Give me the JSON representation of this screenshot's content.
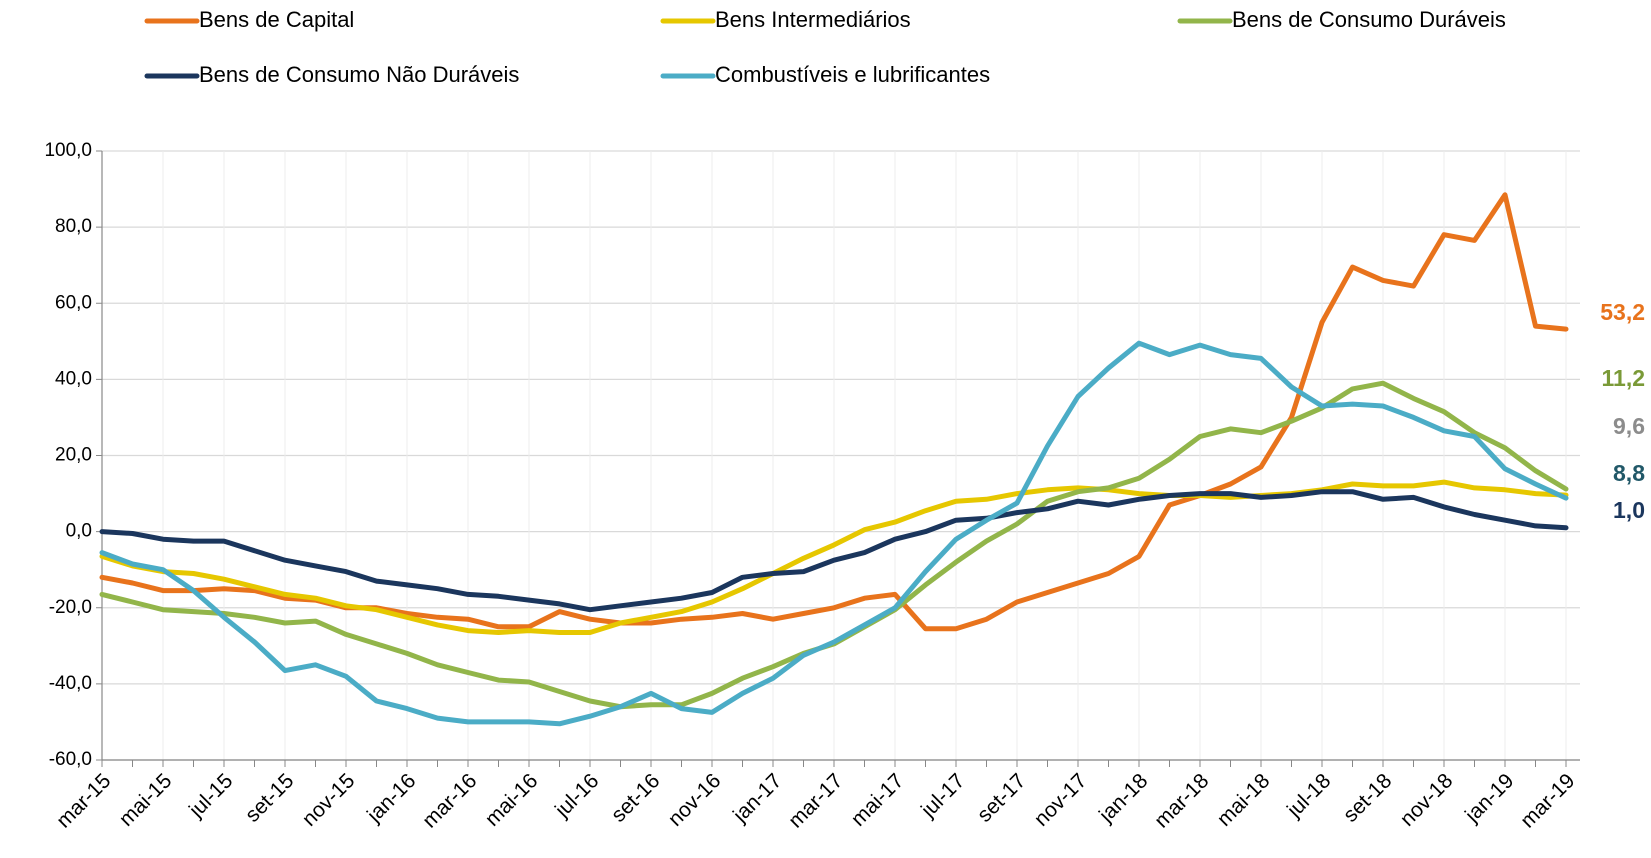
{
  "chart_data": {
    "type": "line",
    "categories": [
      "mar-15",
      null,
      "mai-15",
      null,
      "jul-15",
      null,
      "set-15",
      null,
      "nov-15",
      null,
      "jan-16",
      null,
      "mar-16",
      null,
      "mai-16",
      null,
      "jul-16",
      null,
      "set-16",
      null,
      "nov-16",
      null,
      "jan-17",
      null,
      "mar-17",
      null,
      "mai-17",
      null,
      "jul-17",
      null,
      "set-17",
      null,
      "nov-17",
      null,
      "jan-18",
      null,
      "mar-18",
      null,
      "mai-18",
      null,
      "jul-18",
      null,
      "set-18",
      null,
      "nov-18",
      null,
      "jan-19",
      null,
      "mar-19"
    ],
    "ylim": [
      -60,
      100
    ],
    "yticks": [
      {
        "value": -60,
        "label": "-60,0"
      },
      {
        "value": -40,
        "label": "-40,0"
      },
      {
        "value": -20,
        "label": "-20,0"
      },
      {
        "value": 0,
        "label": "0,0"
      },
      {
        "value": 20,
        "label": "20,0"
      },
      {
        "value": 40,
        "label": "40,0"
      },
      {
        "value": 60,
        "label": "60,0"
      },
      {
        "value": 80,
        "label": "80,0"
      },
      {
        "value": 100,
        "label": "100,0"
      }
    ],
    "grid": true,
    "series": [
      {
        "name": "Bens de Capital",
        "color": "#e8731c",
        "label_color": "#e8731c",
        "values": [
          -12,
          -13.5,
          -15.5,
          -15.5,
          -15,
          -15.5,
          -17.5,
          -18,
          -20,
          -20,
          -21.5,
          -22.5,
          -23,
          -25,
          -25,
          -21,
          -23,
          -24,
          -24,
          -23,
          -22.5,
          -21.5,
          -23,
          -21.5,
          -20,
          -17.5,
          -16.5,
          -25.5,
          -25.5,
          -23,
          -18.5,
          -16,
          -13.5,
          -11,
          -6.5,
          7,
          9.5,
          12.5,
          17,
          30,
          55,
          69.5,
          66,
          64.5,
          78,
          76.5,
          88.5,
          54,
          53.2
        ],
        "value_labels": [
          null,
          null,
          null,
          null,
          null,
          null,
          null,
          null,
          null,
          null,
          null,
          null,
          null,
          null,
          null,
          null,
          null,
          null,
          null,
          null,
          null,
          null,
          null,
          null,
          null,
          null,
          null,
          null,
          null,
          null,
          null,
          null,
          null,
          null,
          null,
          null,
          null,
          null,
          null,
          null,
          null,
          null,
          null,
          null,
          null,
          null,
          null,
          null,
          "53,2"
        ]
      },
      {
        "name": "Bens Intermediários",
        "color": "#e6c700",
        "label_color": "#8c8c8c",
        "values": [
          -6.5,
          -9,
          -10.5,
          -11,
          -12.5,
          -14.5,
          -16.5,
          -17.5,
          -19.5,
          -20.5,
          -22.5,
          -24.5,
          -26,
          -26.5,
          -26,
          -26.5,
          -26.5,
          -24,
          -22.5,
          -21,
          -18.5,
          -15,
          -11,
          -7,
          -3.5,
          0.5,
          2.5,
          5.5,
          8,
          8.5,
          10,
          11,
          11.5,
          11,
          10,
          9.5,
          9.5,
          9,
          9.5,
          10,
          11,
          12.5,
          12,
          12,
          13,
          11.5,
          11,
          10,
          9.6
        ],
        "value_labels": [
          null,
          null,
          null,
          null,
          null,
          null,
          null,
          null,
          null,
          null,
          null,
          null,
          null,
          null,
          null,
          null,
          null,
          null,
          null,
          null,
          null,
          null,
          null,
          null,
          null,
          null,
          null,
          null,
          null,
          null,
          null,
          null,
          null,
          null,
          null,
          null,
          null,
          null,
          null,
          null,
          null,
          null,
          null,
          null,
          null,
          null,
          null,
          null,
          "9,6"
        ]
      },
      {
        "name": "Bens de Consumo Duráveis",
        "color": "#92b54a",
        "label_color": "#7a9a37",
        "values": [
          -16.5,
          -18.5,
          -20.5,
          -21,
          -21.5,
          -22.5,
          -24,
          -23.5,
          -27,
          -29.5,
          -32,
          -35,
          -37,
          -39,
          -39.5,
          -42,
          -44.5,
          -46,
          -45.5,
          -45.5,
          -42.5,
          -38.5,
          -35.5,
          -32,
          -29.5,
          -25,
          -20.5,
          -14,
          -8,
          -2.5,
          2,
          8,
          10.5,
          11.5,
          14,
          19,
          25,
          27,
          26,
          29,
          32.5,
          37.5,
          39,
          35,
          31.5,
          26,
          22,
          16,
          11.2
        ],
        "value_labels": [
          null,
          null,
          null,
          null,
          null,
          null,
          null,
          null,
          null,
          null,
          null,
          null,
          null,
          null,
          null,
          null,
          null,
          null,
          null,
          null,
          null,
          null,
          null,
          null,
          null,
          null,
          null,
          null,
          null,
          null,
          null,
          null,
          null,
          null,
          null,
          null,
          null,
          null,
          null,
          null,
          null,
          null,
          null,
          null,
          null,
          null,
          null,
          null,
          "11,2"
        ]
      },
      {
        "name": "Bens de Consumo Não Duráveis",
        "color": "#1b365d",
        "label_color": "#1b365d",
        "values": [
          0,
          -0.5,
          -2,
          -2.5,
          -2.5,
          -5,
          -7.5,
          -9,
          -10.5,
          -13,
          -14,
          -15,
          -16.5,
          -17,
          -18,
          -19,
          -20.5,
          -19.5,
          -18.5,
          -17.5,
          -16,
          -12,
          -11,
          -10.5,
          -7.5,
          -5.5,
          -2,
          0,
          3,
          3.5,
          5,
          6,
          8,
          7,
          8.5,
          9.5,
          10,
          10,
          9,
          9.5,
          10.5,
          10.5,
          8.5,
          9,
          6.5,
          4.5,
          3,
          1.5,
          1.0
        ],
        "value_labels": [
          null,
          null,
          null,
          null,
          null,
          null,
          null,
          null,
          null,
          null,
          null,
          null,
          null,
          null,
          null,
          null,
          null,
          null,
          null,
          null,
          null,
          null,
          null,
          null,
          null,
          null,
          null,
          null,
          null,
          null,
          null,
          null,
          null,
          null,
          null,
          null,
          null,
          null,
          null,
          null,
          null,
          null,
          null,
          null,
          null,
          null,
          null,
          null,
          "1,0"
        ]
      },
      {
        "name": "Combustíveis e lubrificantes",
        "color": "#4bacc6",
        "label_color": "#215868",
        "values": [
          -5.5,
          -8.5,
          -10,
          -15.5,
          -22.5,
          -29,
          -36.5,
          -35,
          -38,
          -44.5,
          -46.5,
          -49,
          -50,
          -50,
          -50,
          -50.5,
          -48.5,
          -46,
          -42.5,
          -46.5,
          -47.5,
          -42.5,
          -38.5,
          -32.5,
          -29,
          -24.5,
          -20,
          -10.5,
          -2,
          3,
          7.5,
          22.5,
          35.5,
          43,
          49.5,
          46.5,
          49,
          46.5,
          45.5,
          38,
          33,
          33.5,
          33,
          30,
          26.5,
          25,
          16.5,
          12.5,
          8.8
        ],
        "value_labels": [
          null,
          null,
          null,
          null,
          null,
          null,
          null,
          null,
          null,
          null,
          null,
          null,
          null,
          null,
          null,
          null,
          null,
          null,
          null,
          null,
          null,
          null,
          null,
          null,
          null,
          null,
          null,
          null,
          null,
          null,
          null,
          null,
          null,
          null,
          null,
          null,
          null,
          null,
          null,
          null,
          null,
          null,
          null,
          null,
          null,
          null,
          null,
          null,
          "8,8"
        ]
      }
    ]
  }
}
